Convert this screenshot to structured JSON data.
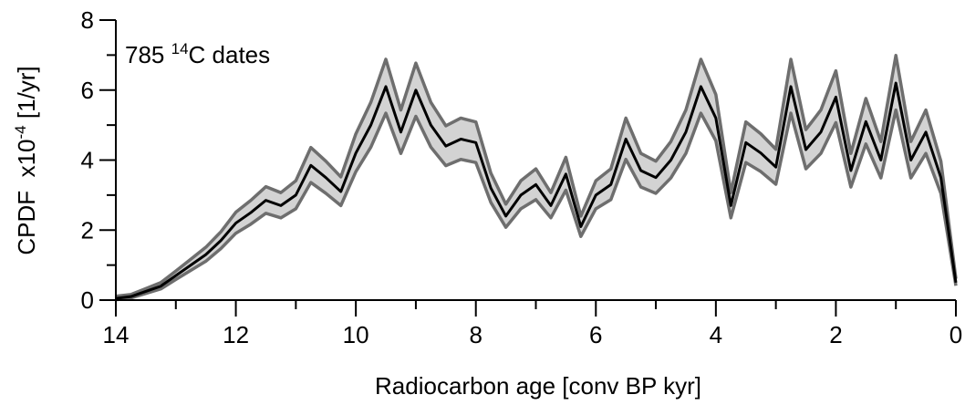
{
  "chart_data": {
    "type": "line",
    "x_label": "Radiocarbon age [conv BP kyr]",
    "y_label": {
      "text": "CPDF  x10",
      "sup": "-4",
      "suffix": " [1/yr]"
    },
    "annotation": {
      "text": "785 ",
      "sup": "14",
      "suffix": "C dates"
    },
    "x": [
      14,
      13.75,
      13.5,
      13.25,
      13,
      12.75,
      12.5,
      12.25,
      12,
      11.75,
      11.5,
      11.25,
      11,
      10.75,
      10.5,
      10.25,
      10,
      9.75,
      9.5,
      9.25,
      9,
      8.75,
      8.5,
      8.25,
      8,
      7.75,
      7.5,
      7.25,
      7,
      6.75,
      6.5,
      6.25,
      6,
      5.75,
      5.5,
      5.25,
      5,
      4.75,
      4.5,
      4.25,
      4,
      3.75,
      3.5,
      3.25,
      3,
      2.75,
      2.5,
      2.25,
      2,
      1.75,
      1.5,
      1.25,
      1,
      0.75,
      0.5,
      0.25,
      0
    ],
    "series": [
      {
        "color": "#6e6e6e",
        "values": [
          0.11,
          0.16,
          0.33,
          0.5,
          0.83,
          1.17,
          1.51,
          1.95,
          2.51,
          2.85,
          3.24,
          3.07,
          3.41,
          4.36,
          3.97,
          3.52,
          4.75,
          5.65,
          6.88,
          5.43,
          6.77,
          5.65,
          4.98,
          5.2,
          5.09,
          3.63,
          2.74,
          3.41,
          3.75,
          3.07,
          4.08,
          2.4,
          3.41,
          3.75,
          5.2,
          4.19,
          3.97,
          4.53,
          5.43,
          6.88,
          5.87,
          3.07,
          5.09,
          4.75,
          4.31,
          6.88,
          4.87,
          5.43,
          6.55,
          4.19,
          5.76,
          4.53,
          6.99,
          4.53,
          5.43,
          3.97,
          0.61
        ]
      },
      {
        "color": "#6e6e6e",
        "values": [
          0.01,
          0.06,
          0.19,
          0.32,
          0.59,
          0.85,
          1.11,
          1.47,
          1.91,
          2.17,
          2.48,
          2.35,
          2.61,
          3.36,
          3.05,
          2.7,
          3.67,
          4.37,
          5.34,
          4.19,
          5.25,
          4.37,
          3.84,
          4.02,
          3.93,
          2.79,
          2.08,
          2.61,
          2.87,
          2.35,
          3.14,
          1.82,
          2.61,
          2.87,
          4.02,
          3.23,
          3.05,
          3.49,
          4.19,
          5.34,
          4.55,
          2.35,
          3.93,
          3.67,
          3.31,
          5.34,
          3.75,
          4.19,
          5.07,
          3.23,
          4.46,
          3.49,
          5.43,
          3.49,
          4.19,
          3.05,
          0.41
        ]
      },
      {
        "color": "#000000",
        "values": [
          0.05,
          0.1,
          0.25,
          0.4,
          0.7,
          1.0,
          1.3,
          1.7,
          2.2,
          2.5,
          2.85,
          2.7,
          3.0,
          3.85,
          3.5,
          3.1,
          4.2,
          5.0,
          6.1,
          4.8,
          6.0,
          5.0,
          4.4,
          4.6,
          4.5,
          3.2,
          2.4,
          3.0,
          3.3,
          2.7,
          3.6,
          2.1,
          3.0,
          3.3,
          4.6,
          3.7,
          3.5,
          4.0,
          4.8,
          6.1,
          5.2,
          2.7,
          4.5,
          4.2,
          3.8,
          6.1,
          4.3,
          4.8,
          5.8,
          3.7,
          5.1,
          4.0,
          6.2,
          4.0,
          4.8,
          3.5,
          0.5
        ]
      }
    ],
    "band_color": "#d3d3d3",
    "xlim": [
      14,
      0
    ],
    "xticks": [
      14,
      12,
      10,
      8,
      6,
      4,
      2,
      0
    ],
    "xminor": [
      13,
      11,
      9,
      7,
      5,
      3,
      1
    ],
    "ylim": [
      0,
      8
    ],
    "yticks": [
      0,
      2,
      4,
      6,
      8
    ],
    "yminor": [
      1,
      3,
      5,
      7
    ]
  }
}
